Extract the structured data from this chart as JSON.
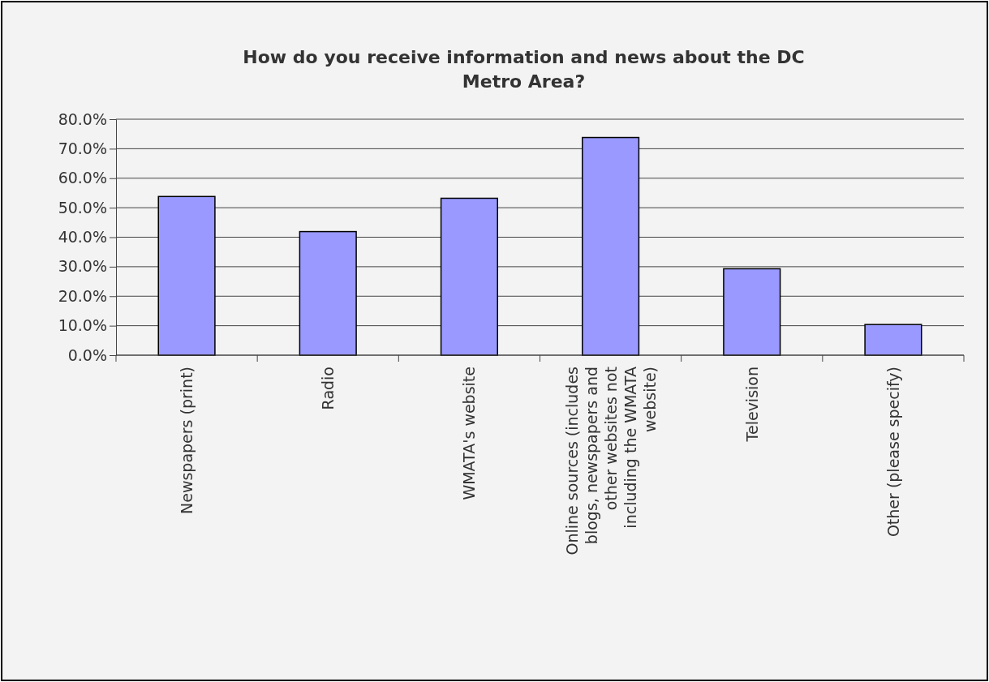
{
  "chart_data": {
    "type": "bar",
    "title": "How do you receive information and news about the DC Metro Area?",
    "categories": [
      "Newspapers (print)",
      "Radio",
      "WMATA's website",
      "Online sources (includes blogs, newspapers and other websites not including the WMATA website)",
      "Television",
      "Other (please specify)"
    ],
    "values": [
      53.8,
      41.9,
      53.2,
      73.8,
      29.3,
      10.4
    ],
    "color": "#9999ff",
    "ylim": [
      0,
      80
    ],
    "yticks": [
      {
        "value": 0,
        "label": "0.0%"
      },
      {
        "value": 10,
        "label": "10.0%"
      },
      {
        "value": 20,
        "label": "20.0%"
      },
      {
        "value": 30,
        "label": "30.0%"
      },
      {
        "value": 40,
        "label": "40.0%"
      },
      {
        "value": 50,
        "label": "50.0%"
      },
      {
        "value": 60,
        "label": "60.0%"
      },
      {
        "value": 70,
        "label": "70.0%"
      },
      {
        "value": 80,
        "label": "80.0%"
      }
    ],
    "grid": "y"
  }
}
